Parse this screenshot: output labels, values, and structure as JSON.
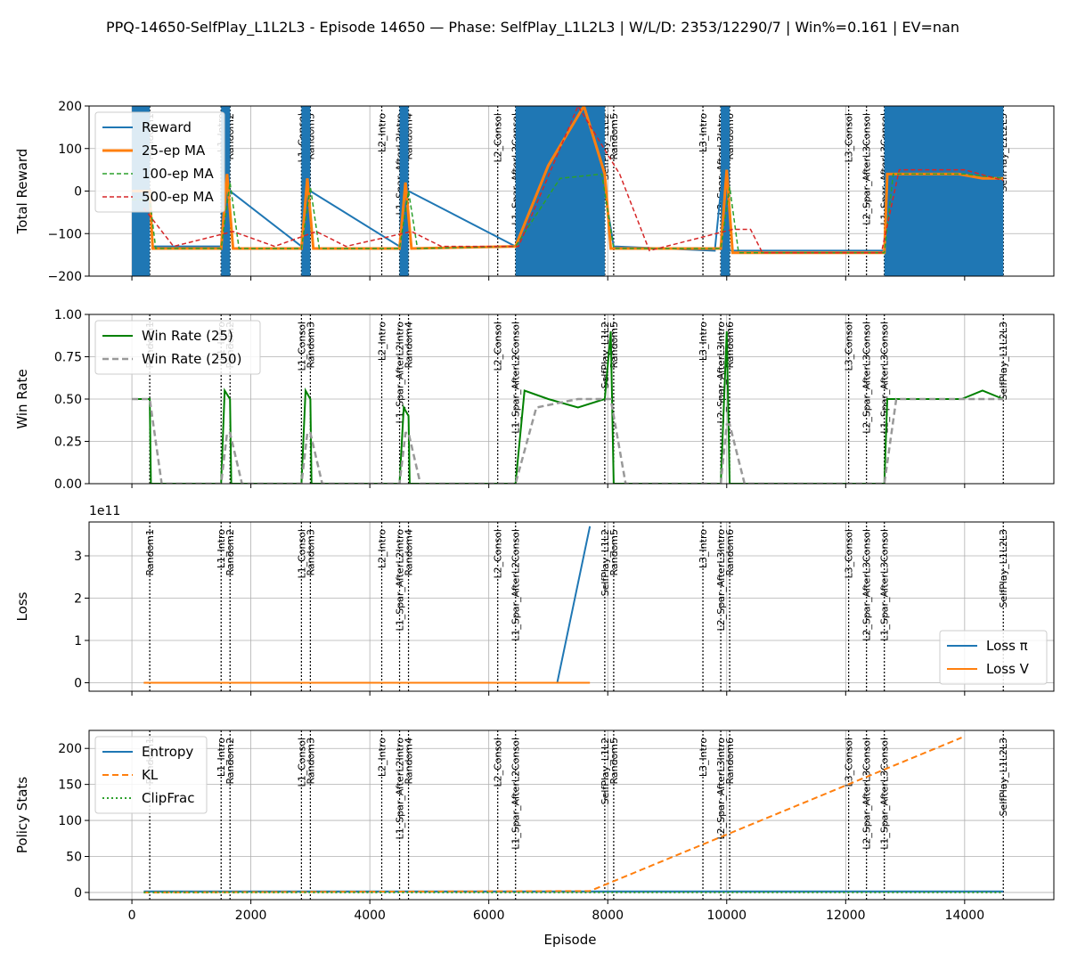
{
  "figure": {
    "title": "PPQ-14650-SelfPlay_L1L2L3 - Episode 14650 — Phase: SelfPlay_L1L2L3 | W/L/D: 2353/12290/7 | Win%=0.161 | EV=nan",
    "xlabel": "Episode",
    "x_ticks": [
      "0",
      "2000",
      "4000",
      "6000",
      "8000",
      "10000",
      "12000",
      "14000"
    ]
  },
  "phase_lines": [
    {
      "label": "Random1",
      "x": 300
    },
    {
      "label": "L1_Intro",
      "x": 1500
    },
    {
      "label": "Random2",
      "x": 1650
    },
    {
      "label": "L1_Consol",
      "x": 2850
    },
    {
      "label": "Random3",
      "x": 3000
    },
    {
      "label": "L2_Intro",
      "x": 4200
    },
    {
      "label": "L1_Spar_AfterL2Intro",
      "x": 4500
    },
    {
      "label": "Random4",
      "x": 4650
    },
    {
      "label": "L2_Consol",
      "x": 6150
    },
    {
      "label": "L1_Spar_AfterL2Consol",
      "x": 6450
    },
    {
      "label": "SelfPlay_L1L2",
      "x": 7950
    },
    {
      "label": "Random5",
      "x": 8100
    },
    {
      "label": "L3_Intro",
      "x": 9600
    },
    {
      "label": "L2_Spar_AfterL3Intro",
      "x": 9900
    },
    {
      "label": "Random6",
      "x": 10050
    },
    {
      "label": "L3_Consol",
      "x": 12050
    },
    {
      "label": "L2_Spar_AfterL3Consol",
      "x": 12350
    },
    {
      "label": "L1_Spar_AfterL3Consol",
      "x": 12650
    },
    {
      "label": "SelfPlay_L1L2L3",
      "x": 14650
    }
  ],
  "colors": {
    "blue": "#1f77b4",
    "orange": "#ff7f0e",
    "green": "#2ca02c",
    "red": "#d62728",
    "darkgreen": "#008000",
    "gray": "#999999"
  },
  "chart_data": [
    {
      "type": "line",
      "ylabel": "Total Reward",
      "ylim": [
        -200,
        200
      ],
      "y_ticks": [
        "200",
        "100",
        "0",
        "−100",
        "−200"
      ],
      "legend": "top-left",
      "series": [
        {
          "name": "Reward",
          "x": [
            0,
            300,
            350,
            1500,
            1650,
            2850,
            3000,
            4500,
            4650,
            6450,
            7950,
            8100,
            9800,
            9900,
            10050,
            12650,
            14650
          ],
          "values": [
            0,
            0,
            -130,
            -130,
            0,
            -130,
            0,
            -130,
            0,
            -130,
            0,
            -130,
            -140,
            0,
            -140,
            -140,
            0
          ]
        },
        {
          "name": "25-ep MA",
          "x": [
            0,
            300,
            350,
            1500,
            1600,
            1700,
            2850,
            2950,
            3050,
            4500,
            4600,
            4700,
            6450,
            7000,
            7600,
            7950,
            8050,
            9900,
            10000,
            10100,
            12650,
            12700,
            13900,
            14300,
            14650
          ],
          "values": [
            0,
            0,
            -135,
            -135,
            40,
            -135,
            -135,
            30,
            -135,
            -135,
            20,
            -135,
            -130,
            60,
            200,
            40,
            -135,
            -135,
            50,
            -145,
            -145,
            40,
            40,
            30,
            30
          ]
        },
        {
          "name": "100-ep MA",
          "x": [
            0,
            300,
            400,
            1500,
            1650,
            1800,
            2850,
            3000,
            3150,
            4500,
            4650,
            4800,
            6450,
            7200,
            7900,
            8100,
            9900,
            10050,
            10200,
            12650,
            12800,
            14000,
            14650
          ],
          "values": [
            -20,
            -20,
            -135,
            -135,
            20,
            -135,
            -135,
            10,
            -135,
            -135,
            0,
            -135,
            -130,
            30,
            40,
            -135,
            -135,
            10,
            -145,
            -145,
            40,
            40,
            30
          ]
        },
        {
          "name": "500-ep MA",
          "x": [
            200,
            700,
            1700,
            2400,
            3100,
            3600,
            4700,
            5200,
            6500,
            7500,
            8200,
            8700,
            10100,
            10400,
            10600,
            12600,
            12900,
            14000,
            14650
          ],
          "values": [
            -40,
            -130,
            -95,
            -130,
            -95,
            -130,
            -95,
            -130,
            -130,
            200,
            40,
            -140,
            -90,
            -90,
            -145,
            -145,
            50,
            50,
            25
          ]
        }
      ]
    },
    {
      "type": "line",
      "ylabel": "Win Rate",
      "ylim": [
        0,
        1
      ],
      "y_ticks": [
        "1.00",
        "0.75",
        "0.50",
        "0.25",
        "0.00"
      ],
      "legend": "top-left",
      "series": [
        {
          "name": "Win Rate (25)",
          "x": [
            0,
            300,
            320,
            1500,
            1560,
            1650,
            1670,
            2850,
            2920,
            3000,
            3020,
            4500,
            4570,
            4650,
            4670,
            6450,
            6600,
            7000,
            7500,
            7950,
            8050,
            8100,
            9900,
            10000,
            10050,
            12650,
            12700,
            13950,
            14300,
            14650
          ],
          "values": [
            0.5,
            0.5,
            0,
            0,
            0.55,
            0.5,
            0,
            0,
            0.55,
            0.5,
            0,
            0,
            0.45,
            0.4,
            0,
            0,
            0.55,
            0.5,
            0.45,
            0.5,
            0.9,
            0,
            0,
            0.9,
            0,
            0,
            0.5,
            0.5,
            0.55,
            0.5
          ]
        },
        {
          "name": "Win Rate (250)",
          "x": [
            0,
            300,
            500,
            1500,
            1600,
            1650,
            1850,
            2850,
            2950,
            3000,
            3200,
            4500,
            4600,
            4650,
            4850,
            6450,
            6800,
            7500,
            7950,
            8050,
            8300,
            9900,
            10000,
            10050,
            10300,
            12650,
            12850,
            13900,
            14650
          ],
          "values": [
            0.5,
            0.5,
            0,
            0,
            0.3,
            0.3,
            0,
            0,
            0.3,
            0.3,
            0,
            0,
            0.3,
            0.3,
            0,
            0,
            0.45,
            0.5,
            0.5,
            0.5,
            0,
            0,
            0.35,
            0.35,
            0,
            0,
            0.5,
            0.5,
            0.5
          ]
        }
      ]
    },
    {
      "type": "line",
      "ylabel": "Loss",
      "ylim": [
        -20000000000.0,
        380000000000.0
      ],
      "y_ticks": [
        "3",
        "2",
        "1",
        "0"
      ],
      "scale_note": "1e11",
      "legend": "bottom-right",
      "series": [
        {
          "name": "Loss π",
          "x": [
            200,
            7150,
            7700
          ],
          "values": [
            0,
            0,
            370000000000.0
          ]
        },
        {
          "name": "Loss V",
          "x": [
            200,
            7700
          ],
          "values": [
            0,
            0
          ]
        }
      ]
    },
    {
      "type": "line",
      "ylabel": "Policy Stats",
      "ylim": [
        -10,
        225
      ],
      "y_ticks": [
        "200",
        "150",
        "100",
        "50",
        "0"
      ],
      "legend": "top-left",
      "series": [
        {
          "name": "Entropy",
          "x": [
            200,
            14650
          ],
          "values": [
            1.5,
            1.5
          ]
        },
        {
          "name": "KL",
          "x": [
            200,
            7700,
            13950
          ],
          "values": [
            0,
            2,
            215
          ]
        },
        {
          "name": "ClipFrac",
          "x": [
            200,
            14650
          ],
          "values": [
            0,
            0
          ]
        }
      ]
    }
  ]
}
